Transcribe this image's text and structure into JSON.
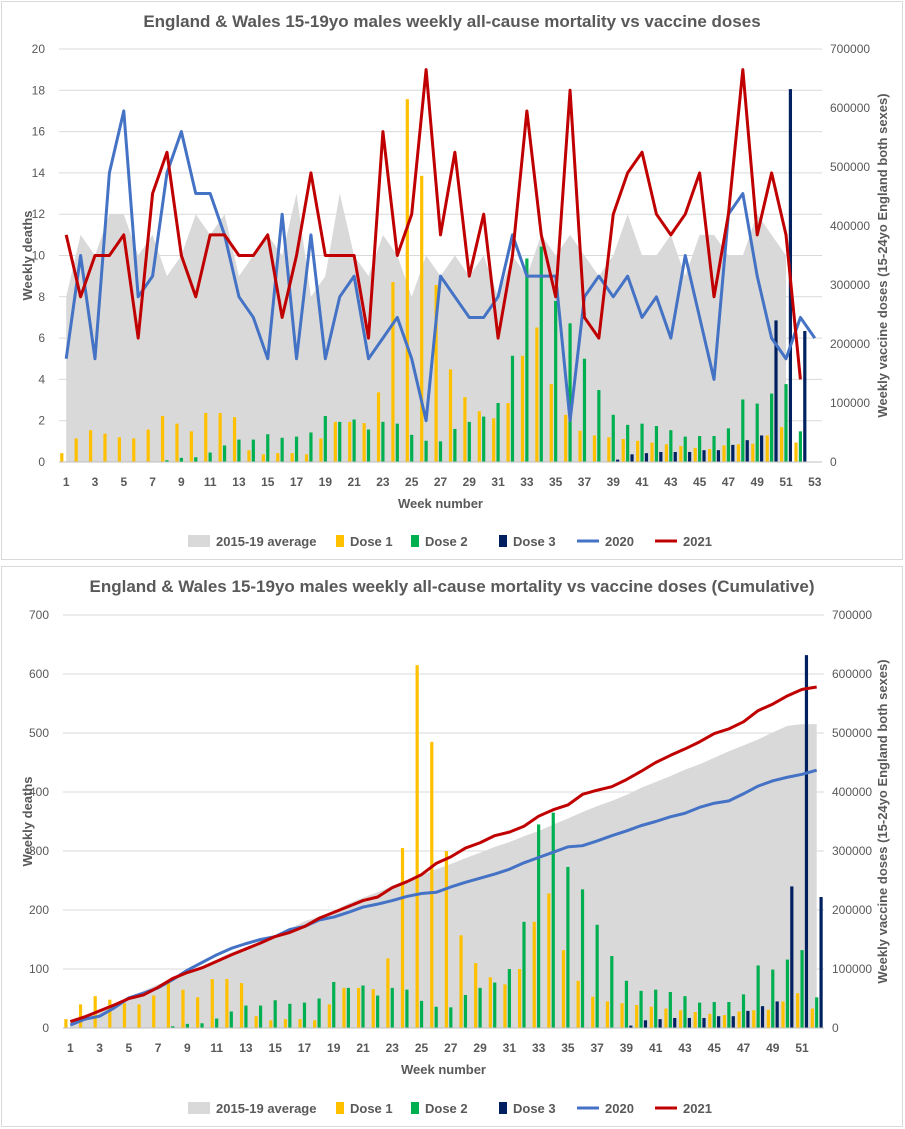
{
  "colors": {
    "avg": "#d9d9d9",
    "dose1": "#ffc000",
    "dose2": "#00b050",
    "dose3": "#002060",
    "y2020": "#4472c4",
    "y2021": "#c00000",
    "grid": "#d9d9d9",
    "text": "#595959"
  },
  "chart_data": [
    {
      "type": "combo",
      "title": "England & Wales 15-19yo males weekly all-cause mortality vs vaccine doses",
      "xlabel": "Week number",
      "ylabel": "Weekly deaths",
      "y2label": "Weekly vaccine doses (15-24yo England both sexes)",
      "ylim": [
        0,
        20
      ],
      "y2lim": [
        0,
        700000
      ],
      "yticks": [
        "0",
        "2",
        "4",
        "6",
        "8",
        "10",
        "12",
        "14",
        "16",
        "18",
        "20"
      ],
      "y2ticks": [
        "0",
        "100000",
        "200000",
        "300000",
        "400000",
        "500000",
        "600000",
        "700000"
      ],
      "xticks": [
        "1",
        "3",
        "5",
        "7",
        "9",
        "11",
        "13",
        "15",
        "17",
        "19",
        "21",
        "23",
        "25",
        "27",
        "29",
        "31",
        "33",
        "35",
        "37",
        "39",
        "41",
        "43",
        "45",
        "47",
        "49",
        "51",
        "53"
      ],
      "grid": true,
      "legend_position": "bottom",
      "legend": [
        "2015-19 average",
        "Dose 1",
        "Dose 2",
        "Dose 3",
        "2020",
        "2021"
      ],
      "x": [
        1,
        2,
        3,
        4,
        5,
        6,
        7,
        8,
        9,
        10,
        11,
        12,
        13,
        14,
        15,
        16,
        17,
        18,
        19,
        20,
        21,
        22,
        23,
        24,
        25,
        26,
        27,
        28,
        29,
        30,
        31,
        32,
        33,
        34,
        35,
        36,
        37,
        38,
        39,
        40,
        41,
        42,
        43,
        44,
        45,
        46,
        47,
        48,
        49,
        50,
        51,
        52,
        53
      ],
      "series": [
        {
          "name": "2015-19 average",
          "kind": "area",
          "axis": "left",
          "values": [
            8,
            11,
            10,
            12,
            12,
            10,
            11,
            9,
            10,
            12,
            11,
            12,
            9,
            10,
            11,
            10,
            13,
            8,
            9,
            13,
            10,
            9,
            11,
            10,
            8,
            10,
            9,
            10,
            9,
            10,
            8,
            10,
            9,
            11,
            10,
            11,
            10,
            9,
            10,
            12,
            10,
            10,
            11,
            9,
            11,
            11,
            10,
            10,
            12,
            11,
            10,
            null,
            null
          ]
        },
        {
          "name": "2020",
          "kind": "line",
          "axis": "left",
          "values": [
            5,
            10,
            5,
            14,
            17,
            8,
            9,
            14,
            16,
            13,
            13,
            11,
            8,
            7,
            5,
            12,
            5,
            11,
            5,
            8,
            9,
            5,
            6,
            7,
            5,
            2,
            9,
            8,
            7,
            7,
            8,
            11,
            9,
            9,
            9,
            2,
            8,
            9,
            8,
            9,
            7,
            8,
            6,
            10,
            7,
            4,
            12,
            13,
            9,
            6,
            5,
            7,
            6
          ]
        },
        {
          "name": "2021",
          "kind": "line",
          "axis": "left",
          "values": [
            11,
            8,
            10,
            10,
            11,
            6,
            13,
            15,
            10,
            8,
            11,
            11,
            10,
            10,
            11,
            7,
            10,
            14,
            10,
            10,
            10,
            6,
            16,
            10,
            12,
            19,
            11,
            15,
            9,
            12,
            6,
            10,
            17,
            11,
            8,
            18,
            7,
            6,
            12,
            14,
            15,
            12,
            11,
            12,
            14,
            8,
            12,
            19,
            11,
            14,
            11,
            4,
            null
          ]
        },
        {
          "name": "Dose 1",
          "kind": "bar",
          "axis": "right",
          "values": [
            15000,
            40000,
            54000,
            48000,
            42000,
            40000,
            55000,
            78000,
            65000,
            52000,
            83000,
            83000,
            76000,
            20000,
            13000,
            15000,
            15000,
            13000,
            40000,
            68000,
            68000,
            66000,
            118000,
            305000,
            615000,
            485000,
            300000,
            157000,
            110000,
            86000,
            74000,
            100000,
            180000,
            228000,
            132000,
            80000,
            53000,
            45000,
            42000,
            39000,
            36000,
            33000,
            30000,
            27000,
            24000,
            22000,
            28000,
            30000,
            31000,
            45000,
            59000,
            33000,
            null
          ]
        },
        {
          "name": "Dose 2",
          "kind": "bar",
          "axis": "right",
          "values": [
            0,
            0,
            0,
            0,
            0,
            0,
            0,
            3000,
            7000,
            8000,
            16000,
            28000,
            38000,
            38000,
            47000,
            41000,
            43000,
            50000,
            78000,
            68000,
            72000,
            55000,
            68000,
            65000,
            46000,
            36000,
            35000,
            56000,
            68000,
            77000,
            100000,
            180000,
            345000,
            365000,
            273000,
            235000,
            175000,
            122000,
            80000,
            63000,
            65000,
            61000,
            54000,
            43000,
            44000,
            44000,
            57000,
            106000,
            99000,
            116000,
            132000,
            52000,
            null
          ]
        },
        {
          "name": "Dose 3",
          "kind": "bar",
          "axis": "right",
          "values": [
            0,
            0,
            0,
            0,
            0,
            0,
            0,
            0,
            0,
            0,
            0,
            0,
            0,
            0,
            0,
            0,
            0,
            0,
            0,
            0,
            0,
            0,
            0,
            0,
            0,
            0,
            0,
            0,
            0,
            0,
            0,
            0,
            0,
            0,
            0,
            0,
            0,
            0,
            4000,
            13000,
            15000,
            17000,
            17000,
            17000,
            20000,
            20000,
            29000,
            37000,
            45000,
            240000,
            632000,
            222000,
            null
          ]
        }
      ]
    },
    {
      "type": "combo",
      "title": "England & Wales 15-19yo males weekly all-cause mortality vs vaccine doses (Cumulative)",
      "xlabel": "Week number",
      "ylabel": "Weekly deaths",
      "y2label": "Weekly vaccine doses (15-24yo England both sexes)",
      "ylim": [
        0,
        700
      ],
      "y2lim": [
        0,
        700000
      ],
      "yticks": [
        "0",
        "100",
        "200",
        "300",
        "400",
        "500",
        "600",
        "700"
      ],
      "y2ticks": [
        "0",
        "100000",
        "200000",
        "300000",
        "400000",
        "500000",
        "600000",
        "700000"
      ],
      "xticks": [
        "1",
        "3",
        "5",
        "7",
        "9",
        "11",
        "13",
        "15",
        "17",
        "19",
        "21",
        "23",
        "25",
        "27",
        "29",
        "31",
        "33",
        "35",
        "37",
        "39",
        "41",
        "43",
        "45",
        "47",
        "49",
        "51"
      ],
      "grid": true,
      "legend_position": "bottom",
      "legend": [
        "2015-19 average",
        "Dose 1",
        "Dose 2",
        "Dose 3",
        "2020",
        "2021"
      ],
      "x": [
        1,
        2,
        3,
        4,
        5,
        6,
        7,
        8,
        9,
        10,
        11,
        12,
        13,
        14,
        15,
        16,
        17,
        18,
        19,
        20,
        21,
        22,
        23,
        24,
        25,
        26,
        27,
        28,
        29,
        30,
        31,
        32,
        33,
        34,
        35,
        36,
        37,
        38,
        39,
        40,
        41,
        42,
        43,
        44,
        45,
        46,
        47,
        48,
        49,
        50,
        51,
        52
      ],
      "series": [
        {
          "name": "2015-19 average",
          "kind": "area",
          "axis": "left",
          "values": [
            8,
            19,
            29,
            41,
            53,
            63,
            74,
            83,
            93,
            105,
            116,
            128,
            137,
            147,
            158,
            168,
            181,
            189,
            198,
            211,
            221,
            230,
            241,
            251,
            259,
            269,
            278,
            288,
            297,
            307,
            315,
            325,
            334,
            345,
            355,
            366,
            376,
            385,
            395,
            407,
            417,
            427,
            438,
            447,
            458,
            469,
            479,
            489,
            501,
            512,
            515,
            515
          ]
        },
        {
          "name": "2020",
          "kind": "line",
          "axis": "left",
          "values": [
            5,
            15,
            20,
            34,
            51,
            59,
            68,
            82,
            98,
            111,
            124,
            135,
            143,
            150,
            155,
            167,
            172,
            183,
            188,
            196,
            205,
            210,
            216,
            223,
            228,
            230,
            239,
            247,
            254,
            261,
            269,
            280,
            289,
            298,
            307,
            309,
            317,
            326,
            334,
            343,
            350,
            358,
            364,
            374,
            381,
            385,
            397,
            410,
            419,
            425,
            430,
            437
          ]
        },
        {
          "name": "2021",
          "kind": "line",
          "axis": "left",
          "values": [
            11,
            19,
            29,
            39,
            50,
            56,
            69,
            84,
            94,
            102,
            113,
            124,
            134,
            144,
            155,
            162,
            172,
            186,
            196,
            206,
            216,
            222,
            238,
            248,
            260,
            279,
            290,
            305,
            314,
            326,
            332,
            342,
            359,
            370,
            378,
            396,
            403,
            409,
            421,
            435,
            450,
            462,
            473,
            485,
            499,
            507,
            519,
            538,
            549,
            563,
            574,
            578
          ]
        },
        {
          "name": "Dose 1",
          "kind": "bar",
          "axis": "right",
          "values": [
            15000,
            40000,
            54000,
            48000,
            42000,
            40000,
            55000,
            78000,
            65000,
            52000,
            83000,
            83000,
            76000,
            20000,
            13000,
            15000,
            15000,
            13000,
            40000,
            68000,
            68000,
            66000,
            118000,
            305000,
            615000,
            485000,
            300000,
            157000,
            110000,
            86000,
            74000,
            100000,
            180000,
            228000,
            132000,
            80000,
            53000,
            45000,
            42000,
            39000,
            36000,
            33000,
            30000,
            27000,
            24000,
            22000,
            28000,
            30000,
            31000,
            45000,
            59000,
            33000
          ]
        },
        {
          "name": "Dose 2",
          "kind": "bar",
          "axis": "right",
          "values": [
            0,
            0,
            0,
            0,
            0,
            0,
            0,
            3000,
            7000,
            8000,
            16000,
            28000,
            38000,
            38000,
            47000,
            41000,
            43000,
            50000,
            78000,
            68000,
            72000,
            55000,
            68000,
            65000,
            46000,
            36000,
            35000,
            56000,
            68000,
            77000,
            100000,
            180000,
            345000,
            365000,
            273000,
            235000,
            175000,
            122000,
            80000,
            63000,
            65000,
            61000,
            54000,
            43000,
            44000,
            44000,
            57000,
            106000,
            99000,
            116000,
            132000,
            52000
          ]
        },
        {
          "name": "Dose 3",
          "kind": "bar",
          "axis": "right",
          "values": [
            0,
            0,
            0,
            0,
            0,
            0,
            0,
            0,
            0,
            0,
            0,
            0,
            0,
            0,
            0,
            0,
            0,
            0,
            0,
            0,
            0,
            0,
            0,
            0,
            0,
            0,
            0,
            0,
            0,
            0,
            0,
            0,
            0,
            0,
            0,
            0,
            0,
            0,
            4000,
            13000,
            15000,
            17000,
            17000,
            17000,
            20000,
            20000,
            29000,
            37000,
            45000,
            240000,
            632000,
            222000
          ]
        }
      ]
    }
  ]
}
